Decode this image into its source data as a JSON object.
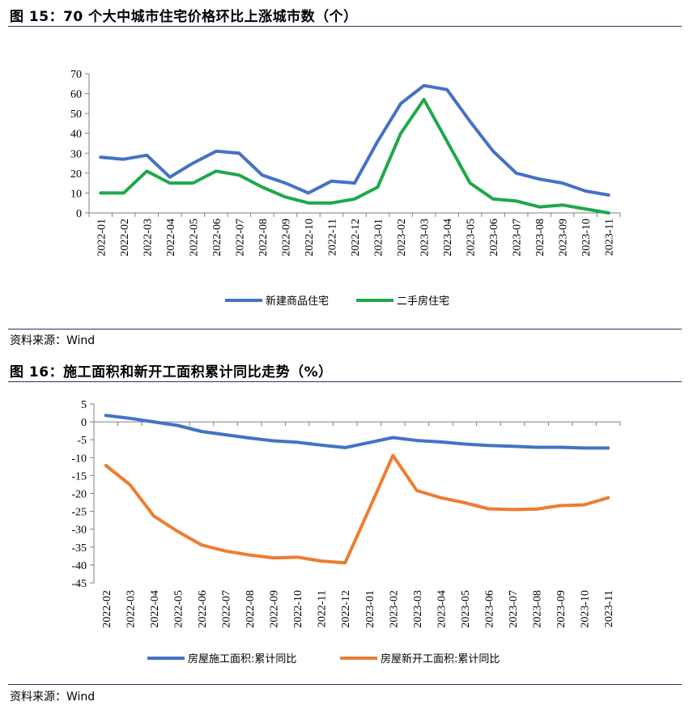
{
  "fig15": {
    "title": "图 15：70 个大中城市住宅价格环比上涨城市数（个）",
    "source": "资料来源：Wind"
  },
  "fig16": {
    "title": "图 16：施工面积和新开工面积累计同比走势（%）",
    "source": "资料来源：Wind"
  },
  "colors": {
    "blue": "#4472c4",
    "green": "#1fa84a",
    "orange": "#ed7d31",
    "rule": "#1f3864"
  },
  "chart_data": [
    {
      "type": "line",
      "title": "70 个大中城市住宅价格环比上涨城市数（个）",
      "categories": [
        "2022-01",
        "2022-02",
        "2022-03",
        "2022-04",
        "2022-05",
        "2022-06",
        "2022-07",
        "2022-08",
        "2022-09",
        "2022-10",
        "2022-11",
        "2022-12",
        "2023-01",
        "2023-02",
        "2023-03",
        "2023-04",
        "2023-05",
        "2023-06",
        "2023-07",
        "2023-08",
        "2023-09",
        "2023-10",
        "2023-11"
      ],
      "ylim": [
        0,
        70
      ],
      "yticks": [
        0,
        10,
        20,
        30,
        40,
        50,
        60,
        70
      ],
      "legend_position": "bottom",
      "series": [
        {
          "name": "新建商品住宅",
          "color": "#4472c4",
          "values": [
            28,
            27,
            29,
            18,
            25,
            31,
            30,
            19,
            15,
            10,
            16,
            15,
            36,
            55,
            64,
            62,
            46,
            31,
            20,
            17,
            15,
            11,
            9
          ]
        },
        {
          "name": "二手房住宅",
          "color": "#1fa84a",
          "values": [
            10,
            10,
            21,
            15,
            15,
            21,
            19,
            13,
            8,
            5,
            5,
            7,
            13,
            40,
            57,
            36,
            15,
            7,
            6,
            3,
            4,
            2,
            0
          ]
        }
      ]
    },
    {
      "type": "line",
      "title": "施工面积和新开工面积累计同比走势（%）",
      "categories": [
        "2022-02",
        "2022-03",
        "2022-04",
        "2022-05",
        "2022-06",
        "2022-07",
        "2022-08",
        "2022-09",
        "2022-10",
        "2022-11",
        "2022-12",
        "2023-01",
        "2023-02",
        "2023-03",
        "2023-04",
        "2023-05",
        "2023-06",
        "2023-07",
        "2023-08",
        "2023-09",
        "2023-10",
        "2023-11"
      ],
      "ylim": [
        -45,
        5
      ],
      "yticks": [
        5,
        0,
        -5,
        -10,
        -15,
        -20,
        -25,
        -30,
        -35,
        -40,
        -45
      ],
      "legend_position": "bottom",
      "series": [
        {
          "name": "房屋施工面积:累计同比",
          "color": "#4472c4",
          "values": [
            1.8,
            1.0,
            0.0,
            -1.0,
            -2.7,
            -3.6,
            -4.5,
            -5.3,
            -5.7,
            -6.5,
            -7.2,
            -5.8,
            -4.4,
            -5.2,
            -5.6,
            -6.2,
            -6.6,
            -6.8,
            -7.1,
            -7.1,
            -7.3,
            -7.3
          ]
        },
        {
          "name": "房屋新开工面积:累计同比",
          "color": "#ed7d31",
          "values": [
            -12.2,
            -17.5,
            -26.3,
            -30.6,
            -34.4,
            -36.1,
            -37.2,
            -38.0,
            -37.8,
            -38.9,
            -39.4,
            -24.5,
            -9.4,
            -19.2,
            -21.2,
            -22.6,
            -24.3,
            -24.5,
            -24.4,
            -23.4,
            -23.2,
            -21.2
          ]
        }
      ]
    }
  ]
}
